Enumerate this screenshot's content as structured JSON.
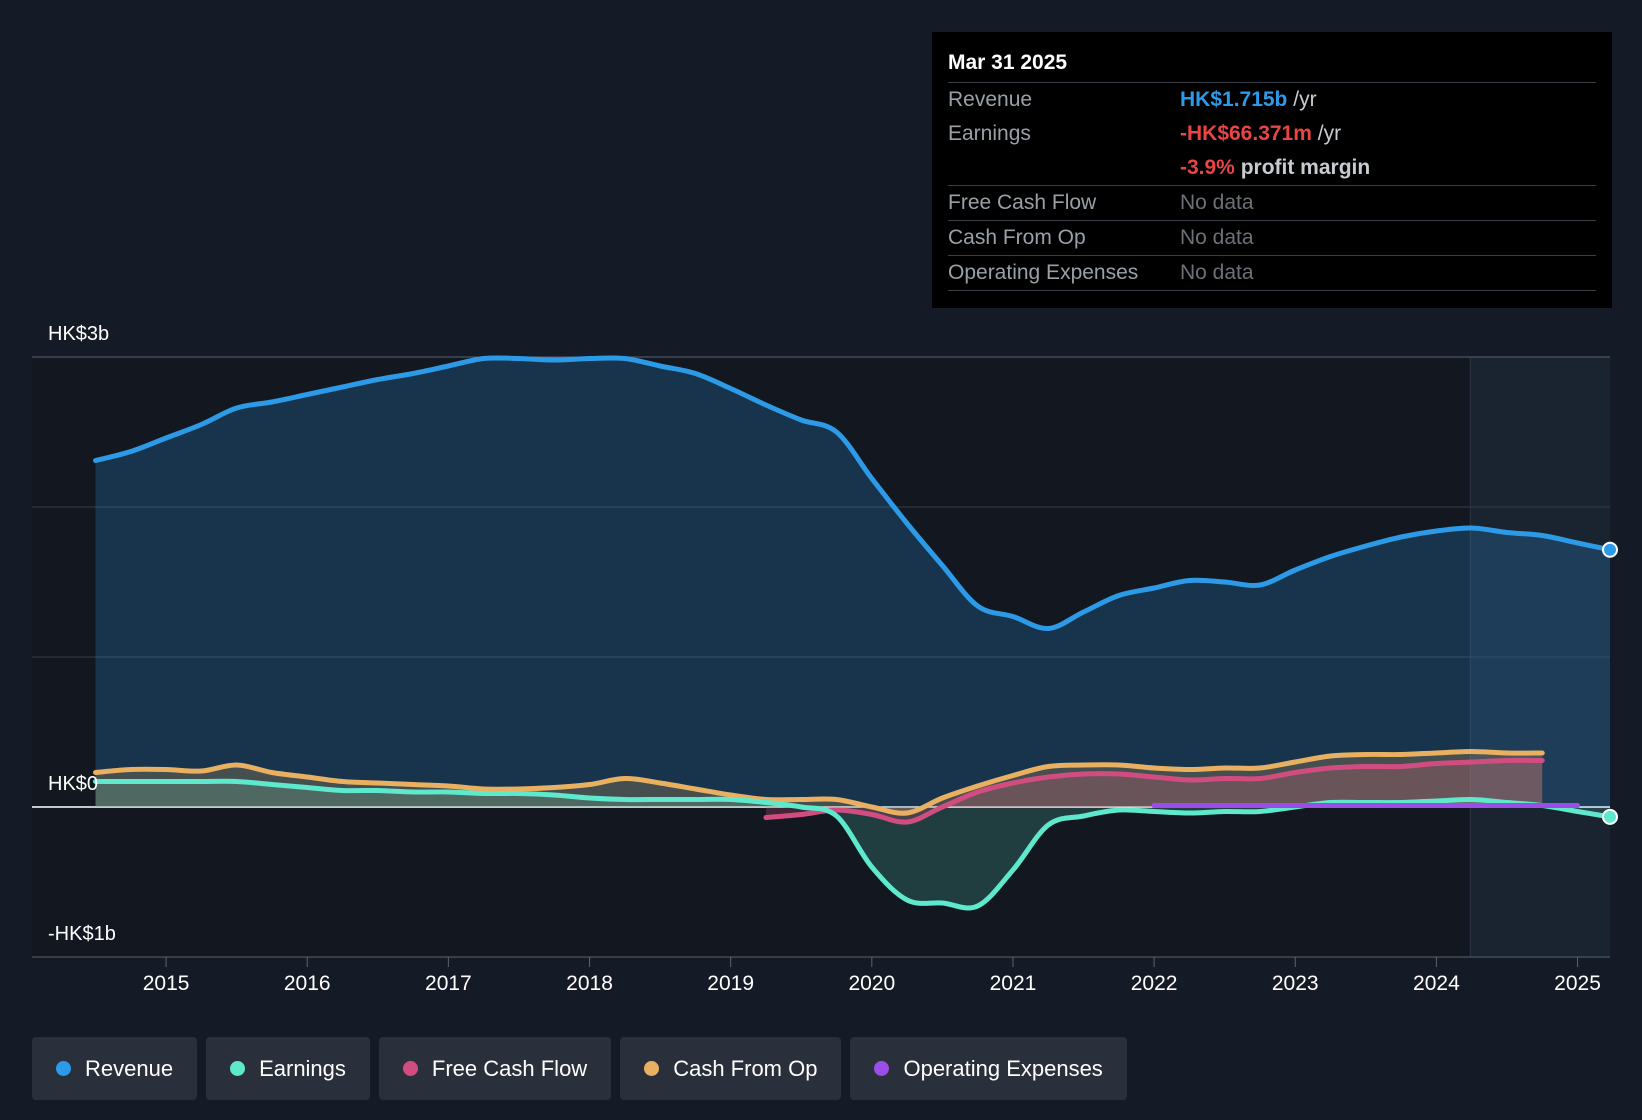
{
  "tooltip": {
    "date": "Mar 31 2025",
    "rows": [
      {
        "label": "Revenue",
        "value": "HK$1.715b",
        "unit": "/yr"
      },
      {
        "label": "Earnings",
        "value": "-HK$66.371m",
        "unit": "/yr"
      },
      {
        "label": "",
        "value": "-3.9%",
        "unit": "profit margin"
      },
      {
        "label": "Free Cash Flow",
        "value": "No data"
      },
      {
        "label": "Cash From Op",
        "value": "No data"
      },
      {
        "label": "Operating Expenses",
        "value": "No data"
      }
    ]
  },
  "legend": [
    {
      "label": "Revenue",
      "color": "#2d9ae8"
    },
    {
      "label": "Earnings",
      "color": "#5ee8cc"
    },
    {
      "label": "Free Cash Flow",
      "color": "#d14d80"
    },
    {
      "label": "Cash From Op",
      "color": "#e8b060"
    },
    {
      "label": "Operating Expenses",
      "color": "#9b4de8"
    }
  ],
  "chart_data": {
    "type": "line",
    "title": "",
    "xlabel": "",
    "ylabel": "",
    "y_tick_labels": [
      "HK$3b",
      "HK$0",
      "-HK$1b"
    ],
    "ylim": [
      -1.0,
      3.0
    ],
    "xlim": [
      2014.05,
      2025.23
    ],
    "x_ticks": [
      2015,
      2016,
      2017,
      2018,
      2019,
      2020,
      2021,
      2022,
      2023,
      2024,
      2025
    ],
    "x_tick_labels": [
      "2015",
      "2016",
      "2017",
      "2018",
      "2019",
      "2020",
      "2021",
      "2022",
      "2023",
      "2024",
      "2025"
    ],
    "forecast_start": 2024.24,
    "units": "HK$ billions",
    "series": [
      {
        "name": "Revenue",
        "color": "#2d9ae8",
        "points": [
          [
            2014.5,
            2.31
          ],
          [
            2014.75,
            2.37
          ],
          [
            2015.0,
            2.46
          ],
          [
            2015.25,
            2.55
          ],
          [
            2015.5,
            2.66
          ],
          [
            2015.75,
            2.7
          ],
          [
            2016.0,
            2.75
          ],
          [
            2016.25,
            2.8
          ],
          [
            2016.5,
            2.85
          ],
          [
            2016.75,
            2.89
          ],
          [
            2017.0,
            2.94
          ],
          [
            2017.25,
            2.99
          ],
          [
            2017.5,
            2.99
          ],
          [
            2017.75,
            2.98
          ],
          [
            2018.0,
            2.99
          ],
          [
            2018.25,
            2.99
          ],
          [
            2018.5,
            2.94
          ],
          [
            2018.75,
            2.89
          ],
          [
            2019.0,
            2.79
          ],
          [
            2019.25,
            2.68
          ],
          [
            2019.5,
            2.58
          ],
          [
            2019.75,
            2.5
          ],
          [
            2020.0,
            2.19
          ],
          [
            2020.25,
            1.89
          ],
          [
            2020.5,
            1.61
          ],
          [
            2020.75,
            1.34
          ],
          [
            2021.0,
            1.27
          ],
          [
            2021.25,
            1.19
          ],
          [
            2021.5,
            1.3
          ],
          [
            2021.75,
            1.41
          ],
          [
            2022.0,
            1.46
          ],
          [
            2022.25,
            1.51
          ],
          [
            2022.5,
            1.5
          ],
          [
            2022.75,
            1.48
          ],
          [
            2023.0,
            1.58
          ],
          [
            2023.25,
            1.67
          ],
          [
            2023.5,
            1.74
          ],
          [
            2023.75,
            1.8
          ],
          [
            2024.0,
            1.84
          ],
          [
            2024.25,
            1.86
          ],
          [
            2024.5,
            1.83
          ],
          [
            2024.75,
            1.81
          ],
          [
            2025.0,
            1.76
          ],
          [
            2025.23,
            1.715
          ]
        ]
      },
      {
        "name": "Earnings",
        "color": "#5ee8cc",
        "points": [
          [
            2014.5,
            0.17
          ],
          [
            2014.75,
            0.17
          ],
          [
            2015.0,
            0.17
          ],
          [
            2015.25,
            0.17
          ],
          [
            2015.5,
            0.17
          ],
          [
            2015.75,
            0.15
          ],
          [
            2016.0,
            0.13
          ],
          [
            2016.25,
            0.11
          ],
          [
            2016.5,
            0.11
          ],
          [
            2016.75,
            0.1
          ],
          [
            2017.0,
            0.1
          ],
          [
            2017.25,
            0.09
          ],
          [
            2017.5,
            0.09
          ],
          [
            2017.75,
            0.08
          ],
          [
            2018.0,
            0.06
          ],
          [
            2018.25,
            0.05
          ],
          [
            2018.5,
            0.05
          ],
          [
            2018.75,
            0.05
          ],
          [
            2019.0,
            0.05
          ],
          [
            2019.25,
            0.03
          ],
          [
            2019.5,
            0.0
          ],
          [
            2019.75,
            -0.06
          ],
          [
            2020.0,
            -0.4
          ],
          [
            2020.25,
            -0.62
          ],
          [
            2020.5,
            -0.64
          ],
          [
            2020.75,
            -0.66
          ],
          [
            2021.0,
            -0.42
          ],
          [
            2021.25,
            -0.12
          ],
          [
            2021.5,
            -0.06
          ],
          [
            2021.75,
            -0.02
          ],
          [
            2022.0,
            -0.03
          ],
          [
            2022.25,
            -0.04
          ],
          [
            2022.5,
            -0.03
          ],
          [
            2022.75,
            -0.03
          ],
          [
            2023.0,
            0.0
          ],
          [
            2023.25,
            0.03
          ],
          [
            2023.5,
            0.03
          ],
          [
            2023.75,
            0.03
          ],
          [
            2024.0,
            0.04
          ],
          [
            2024.25,
            0.05
          ],
          [
            2024.5,
            0.03
          ],
          [
            2024.75,
            0.01
          ],
          [
            2025.0,
            -0.03
          ],
          [
            2025.23,
            -0.066
          ]
        ]
      },
      {
        "name": "Free Cash Flow",
        "color": "#d14d80",
        "points": [
          [
            2019.25,
            -0.07
          ],
          [
            2019.5,
            -0.05
          ],
          [
            2019.75,
            -0.02
          ],
          [
            2020.0,
            -0.05
          ],
          [
            2020.25,
            -0.1
          ],
          [
            2020.5,
            0.0
          ],
          [
            2020.75,
            0.1
          ],
          [
            2021.0,
            0.16
          ],
          [
            2021.25,
            0.2
          ],
          [
            2021.5,
            0.22
          ],
          [
            2021.75,
            0.22
          ],
          [
            2022.0,
            0.2
          ],
          [
            2022.25,
            0.18
          ],
          [
            2022.5,
            0.19
          ],
          [
            2022.75,
            0.19
          ],
          [
            2023.0,
            0.23
          ],
          [
            2023.25,
            0.26
          ],
          [
            2023.5,
            0.27
          ],
          [
            2023.75,
            0.27
          ],
          [
            2024.0,
            0.29
          ],
          [
            2024.25,
            0.3
          ],
          [
            2024.5,
            0.31
          ],
          [
            2024.75,
            0.31
          ]
        ]
      },
      {
        "name": "Cash From Op",
        "color": "#e8b060",
        "points": [
          [
            2014.5,
            0.23
          ],
          [
            2014.75,
            0.25
          ],
          [
            2015.0,
            0.25
          ],
          [
            2015.25,
            0.24
          ],
          [
            2015.5,
            0.28
          ],
          [
            2015.75,
            0.23
          ],
          [
            2016.0,
            0.2
          ],
          [
            2016.25,
            0.17
          ],
          [
            2016.5,
            0.16
          ],
          [
            2016.75,
            0.15
          ],
          [
            2017.0,
            0.14
          ],
          [
            2017.25,
            0.12
          ],
          [
            2017.5,
            0.12
          ],
          [
            2017.75,
            0.13
          ],
          [
            2018.0,
            0.15
          ],
          [
            2018.25,
            0.19
          ],
          [
            2018.5,
            0.16
          ],
          [
            2018.75,
            0.12
          ],
          [
            2019.0,
            0.08
          ],
          [
            2019.25,
            0.05
          ],
          [
            2019.5,
            0.05
          ],
          [
            2019.75,
            0.05
          ],
          [
            2020.0,
            0.0
          ],
          [
            2020.25,
            -0.04
          ],
          [
            2020.5,
            0.06
          ],
          [
            2020.75,
            0.14
          ],
          [
            2021.0,
            0.21
          ],
          [
            2021.25,
            0.27
          ],
          [
            2021.5,
            0.28
          ],
          [
            2021.75,
            0.28
          ],
          [
            2022.0,
            0.26
          ],
          [
            2022.25,
            0.25
          ],
          [
            2022.5,
            0.26
          ],
          [
            2022.75,
            0.26
          ],
          [
            2023.0,
            0.3
          ],
          [
            2023.25,
            0.34
          ],
          [
            2023.5,
            0.35
          ],
          [
            2023.75,
            0.35
          ],
          [
            2024.0,
            0.36
          ],
          [
            2024.25,
            0.37
          ],
          [
            2024.5,
            0.36
          ],
          [
            2024.75,
            0.36
          ]
        ]
      },
      {
        "name": "Operating Expenses",
        "color": "#9b4de8",
        "points": [
          [
            2022.0,
            0.01
          ],
          [
            2022.5,
            0.01
          ],
          [
            2023.0,
            0.01
          ],
          [
            2023.5,
            0.01
          ],
          [
            2024.0,
            0.01
          ],
          [
            2024.5,
            0.01
          ],
          [
            2025.0,
            0.01
          ]
        ]
      }
    ]
  }
}
